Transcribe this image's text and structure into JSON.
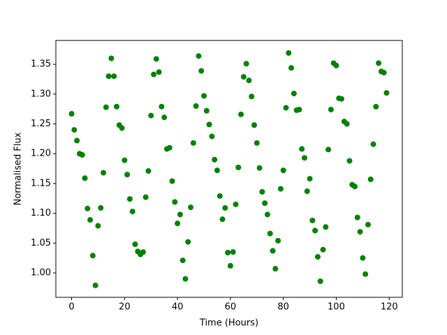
{
  "chart_data": {
    "type": "scatter",
    "xlabel": "Time (Hours)",
    "ylabel": "Normalised Flux",
    "x": [
      0,
      1,
      2,
      3,
      4,
      5,
      6,
      7,
      8,
      9,
      10,
      11,
      12,
      13,
      14,
      15,
      16,
      17,
      18,
      19,
      20,
      21,
      22,
      23,
      24,
      25,
      26,
      27,
      28,
      29,
      30,
      31,
      32,
      33,
      34,
      35,
      36,
      37,
      38,
      39,
      40,
      41,
      42,
      43,
      44,
      45,
      46,
      47,
      48,
      49,
      50,
      51,
      52,
      53,
      54,
      55,
      56,
      57,
      58,
      59,
      60,
      61,
      62,
      63,
      64,
      65,
      66,
      67,
      68,
      69,
      70,
      71,
      72,
      73,
      74,
      75,
      76,
      77,
      78,
      79,
      80,
      81,
      82,
      83,
      84,
      85,
      86,
      87,
      88,
      89,
      90,
      91,
      92,
      93,
      94,
      95,
      96,
      97,
      98,
      99,
      100,
      101,
      102,
      103,
      104,
      105,
      106,
      107,
      108,
      109,
      110,
      111,
      112,
      113,
      114,
      115,
      116,
      117,
      118,
      119
    ],
    "values": [
      1.267,
      1.24,
      1.222,
      1.2,
      1.198,
      1.159,
      1.108,
      1.089,
      1.029,
      0.979,
      1.079,
      1.109,
      1.168,
      1.278,
      1.33,
      1.36,
      1.33,
      1.279,
      1.248,
      1.243,
      1.189,
      1.165,
      1.124,
      1.103,
      1.048,
      1.036,
      1.031,
      1.035,
      1.127,
      1.171,
      1.264,
      1.333,
      1.359,
      1.337,
      1.279,
      1.261,
      1.208,
      1.21,
      1.154,
      1.119,
      1.083,
      1.098,
      1.021,
      0.99,
      1.052,
      1.11,
      1.218,
      1.28,
      1.364,
      1.339,
      1.297,
      1.272,
      1.249,
      1.229,
      1.19,
      1.172,
      1.129,
      1.09,
      1.109,
      1.034,
      1.012,
      1.035,
      1.115,
      1.177,
      1.266,
      1.329,
      1.351,
      1.323,
      1.296,
      1.248,
      1.218,
      1.176,
      1.136,
      1.117,
      1.098,
      1.066,
      1.037,
      1.007,
      1.054,
      1.141,
      1.172,
      1.277,
      1.369,
      1.344,
      1.301,
      1.273,
      1.274,
      1.208,
      1.193,
      1.137,
      1.158,
      1.088,
      1.071,
      1.027,
      0.986,
      1.039,
      1.077,
      1.207,
      1.274,
      1.352,
      1.348,
      1.293,
      1.292,
      1.254,
      1.25,
      1.188,
      1.148,
      1.145,
      1.093,
      1.069,
      1.025,
      0.998,
      1.081,
      1.157,
      1.216,
      1.279,
      1.352,
      1.338,
      1.336,
      1.302
    ],
    "color": "#008000",
    "xlim": [
      -5.95,
      124.95
    ],
    "xticks": [
      0,
      20,
      40,
      60,
      80,
      100,
      120
    ],
    "ylim": [
      0.959,
      1.39
    ],
    "yticks": [
      {
        "value": 1,
        "label": "1.00"
      },
      1.05,
      {
        "value": 1.1,
        "label": "1.10"
      },
      1.15,
      {
        "value": 1.2,
        "label": "1.20"
      },
      1.25,
      {
        "value": 1.3,
        "label": "1.30"
      },
      1.35
    ],
    "grid": false
  }
}
